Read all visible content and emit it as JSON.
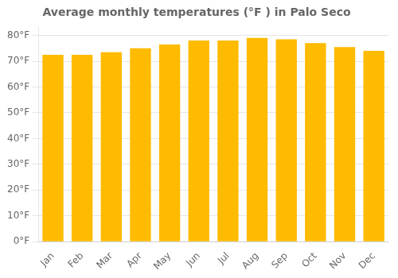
{
  "chart_data": {
    "type": "bar",
    "title": "Average monthly temperatures (°F ) in Palo Seco",
    "categories": [
      "Jan",
      "Feb",
      "Mar",
      "Apr",
      "May",
      "Jun",
      "Jul",
      "Aug",
      "Sep",
      "Oct",
      "Nov",
      "Dec"
    ],
    "values": [
      72.5,
      72.5,
      73.5,
      75.0,
      76.5,
      78.0,
      78.0,
      79.0,
      78.5,
      77.0,
      75.5,
      74.0
    ],
    "color": "#FFBB00",
    "ylim": [
      0,
      83
    ],
    "yticks": [
      {
        "value": 0,
        "label": "0°F"
      },
      {
        "value": 10,
        "label": "10°F"
      },
      {
        "value": 20,
        "label": "20°F"
      },
      {
        "value": 30,
        "label": "30°F"
      },
      {
        "value": 40,
        "label": "40°F"
      },
      {
        "value": 50,
        "label": "50°F"
      },
      {
        "value": 60,
        "label": "60°F"
      },
      {
        "value": 70,
        "label": "70°F"
      },
      {
        "value": 80,
        "label": "80°F"
      }
    ],
    "grid": true
  }
}
